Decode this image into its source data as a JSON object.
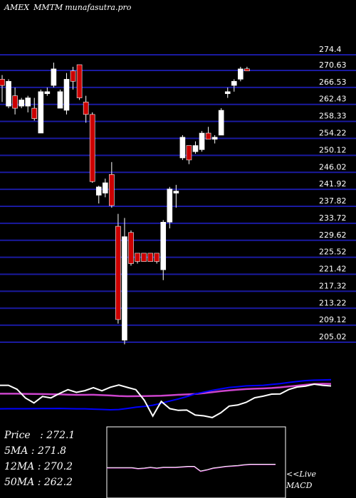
{
  "header": {
    "exchange": "AMEX",
    "symbol": "MMTM",
    "site": "munafasutra.pro"
  },
  "info": {
    "price_label": "Price",
    "price_value": "272.1",
    "ma5_label": "5MA",
    "ma5_value": "271.8",
    "ma12_label": "12MA",
    "ma12_value": "270.2",
    "ma50_label": "50MA",
    "ma50_value": "262.2"
  },
  "macd_label": {
    "line1": "<<Live",
    "line2": "MACD"
  },
  "colors": {
    "background": "#000000",
    "grid": "#1a1aa0",
    "up": "#ffffff",
    "down": "#cc0000",
    "ma_short": "#0000ff",
    "ma_long": "#cc44cc",
    "oscillator": "#ffffff",
    "macd_box_border": "#ffffff",
    "macd_line": "#cc44cc"
  },
  "chart_data": {
    "type": "candlestick",
    "y_ticks": [
      "274.4",
      "270.63",
      "266.53",
      "262.43",
      "258.33",
      "254.22",
      "250.12",
      "246.02",
      "241.92",
      "237.82",
      "233.72",
      "229.62",
      "225.52",
      "221.42",
      "217.32",
      "213.22",
      "209.12",
      "205.02"
    ],
    "ylim": [
      205.02,
      274.4
    ],
    "candles": [
      {
        "o": 268.5,
        "h": 269.5,
        "l": 263.0,
        "c": 267.0
      },
      {
        "o": 262.0,
        "h": 268.5,
        "l": 261.5,
        "c": 268.0
      },
      {
        "o": 264.5,
        "h": 266.5,
        "l": 260.0,
        "c": 261.5
      },
      {
        "o": 262.0,
        "h": 264.0,
        "l": 261.5,
        "c": 263.5
      },
      {
        "o": 262.0,
        "h": 264.5,
        "l": 260.5,
        "c": 264.0
      },
      {
        "o": 261.5,
        "h": 264.0,
        "l": 258.5,
        "c": 259.0
      },
      {
        "o": 255.5,
        "h": 266.0,
        "l": 255.5,
        "c": 265.5
      },
      {
        "o": 265.0,
        "h": 266.5,
        "l": 264.5,
        "c": 265.5
      },
      {
        "o": 267.0,
        "h": 272.5,
        "l": 266.5,
        "c": 271.0
      },
      {
        "o": 261.5,
        "h": 266.0,
        "l": 261.5,
        "c": 265.5
      },
      {
        "o": 261.0,
        "h": 270.0,
        "l": 260.0,
        "c": 268.5
      },
      {
        "o": 270.5,
        "h": 271.5,
        "l": 266.0,
        "c": 268.0
      },
      {
        "o": 272.0,
        "h": 272.0,
        "l": 263.5,
        "c": 264.0
      },
      {
        "o": 263.0,
        "h": 264.5,
        "l": 258.0,
        "c": 260.0
      },
      {
        "o": 260.0,
        "h": 260.5,
        "l": 243.5,
        "c": 243.8
      },
      {
        "o": 240.5,
        "h": 242.8,
        "l": 238.5,
        "c": 242.5
      },
      {
        "o": 241.0,
        "h": 244.5,
        "l": 240.0,
        "c": 243.5
      },
      {
        "o": 245.5,
        "h": 248.5,
        "l": 237.5,
        "c": 238.0
      },
      {
        "o": 233.0,
        "h": 236.0,
        "l": 209.5,
        "c": 210.5
      },
      {
        "o": 205.5,
        "h": 235.0,
        "l": 204.5,
        "c": 230.5
      },
      {
        "o": 231.5,
        "h": 232.0,
        "l": 223.5,
        "c": 224.0
      },
      {
        "o": 226.5,
        "h": 226.5,
        "l": 224.0,
        "c": 224.5
      },
      {
        "o": 226.5,
        "h": 226.5,
        "l": 224.5,
        "c": 224.5
      },
      {
        "o": 226.5,
        "h": 226.5,
        "l": 224.5,
        "c": 224.5
      },
      {
        "o": 226.5,
        "h": 226.5,
        "l": 224.0,
        "c": 224.5
      },
      {
        "o": 222.5,
        "h": 234.5,
        "l": 220.0,
        "c": 234.0
      },
      {
        "o": 234.0,
        "h": 242.5,
        "l": 232.5,
        "c": 242.0
      },
      {
        "o": 241.0,
        "h": 243.0,
        "l": 237.5,
        "c": 241.5
      },
      {
        "o": 249.5,
        "h": 255.0,
        "l": 249.0,
        "c": 254.5
      },
      {
        "o": 252.5,
        "h": 252.5,
        "l": 248.0,
        "c": 249.0
      },
      {
        "o": 251.0,
        "h": 253.5,
        "l": 250.5,
        "c": 252.5
      },
      {
        "o": 251.5,
        "h": 256.0,
        "l": 251.0,
        "c": 255.5
      },
      {
        "o": 255.5,
        "h": 257.0,
        "l": 254.0,
        "c": 254.0
      },
      {
        "o": 254.0,
        "h": 255.0,
        "l": 253.0,
        "c": 254.5
      },
      {
        "o": 255.0,
        "h": 261.5,
        "l": 255.0,
        "c": 261.0
      },
      {
        "o": 265.0,
        "h": 266.5,
        "l": 264.0,
        "c": 265.5
      },
      {
        "o": 267.0,
        "h": 268.5,
        "l": 265.5,
        "c": 268.0
      },
      {
        "o": 268.5,
        "h": 271.5,
        "l": 268.0,
        "c": 271.0
      },
      {
        "o": 271.0,
        "h": 271.5,
        "l": 270.5,
        "c": 270.5
      }
    ],
    "ma_short": [
      38.6,
      38.5,
      38.5,
      38.5,
      38.4,
      38.3,
      38.2,
      38.1,
      38.4,
      38.6,
      38.6,
      39.1,
      39.5,
      40.0,
      39.6,
      38.1,
      36.4,
      35.2,
      33.6,
      30.8,
      27.7,
      24.8,
      21.5,
      17.7,
      15.2,
      12.7,
      10.6,
      8.6,
      7.6,
      6.4,
      6.0,
      5.6,
      4.4,
      3.3,
      1.6,
      0.2,
      -1.0,
      -1.6,
      -1.9,
      -2.3
    ],
    "ma_long": [
      17.4,
      17.4,
      17.4,
      17.6,
      17.7,
      17.9,
      18.1,
      18.3,
      18.7,
      19.0,
      19.0,
      18.9,
      19.4,
      19.9,
      20.6,
      21.0,
      20.9,
      20.7,
      20.5,
      20.2,
      19.6,
      18.9,
      18.4,
      17.7,
      16.6,
      15.3,
      13.9,
      12.7,
      11.8,
      10.9,
      10.4,
      10.0,
      9.4,
      8.5,
      7.3,
      6.1,
      4.9,
      3.8,
      3.4,
      3.6
    ],
    "oscillator": [
      -5.6,
      -5.6,
      -11.1,
      -23.5,
      -30.4,
      -21.3,
      -23.3,
      -17.1,
      -11.7,
      -15.5,
      -13.1,
      -8.9,
      -13.3,
      -8.3,
      -5.2,
      -8.5,
      -11.7,
      -26.6,
      -48.8,
      -28.2,
      -38.4,
      -40.8,
      -40.4,
      -47.4,
      -48.5,
      -50.9,
      -44.3,
      -34.8,
      -33.3,
      -29.5,
      -23.1,
      -20.9,
      -18.0,
      -17.8,
      -11.6,
      -8.0,
      -6.7,
      -4.0,
      -5.6,
      -6.5
    ],
    "oscillator_scale": [
      -70,
      70
    ],
    "macd_inset": [
      -0.3,
      -0.3,
      -0.3,
      -0.3,
      -0.3,
      -0.5,
      -0.4,
      -0.2,
      -0.4,
      -0.2,
      -0.2,
      -0.2,
      -0.1,
      0.0,
      0.0,
      -1.1,
      -0.8,
      -0.4,
      -0.2,
      0.0,
      0.1,
      0.2,
      0.4,
      0.5,
      0.5,
      0.5,
      0.5,
      0.5
    ]
  }
}
